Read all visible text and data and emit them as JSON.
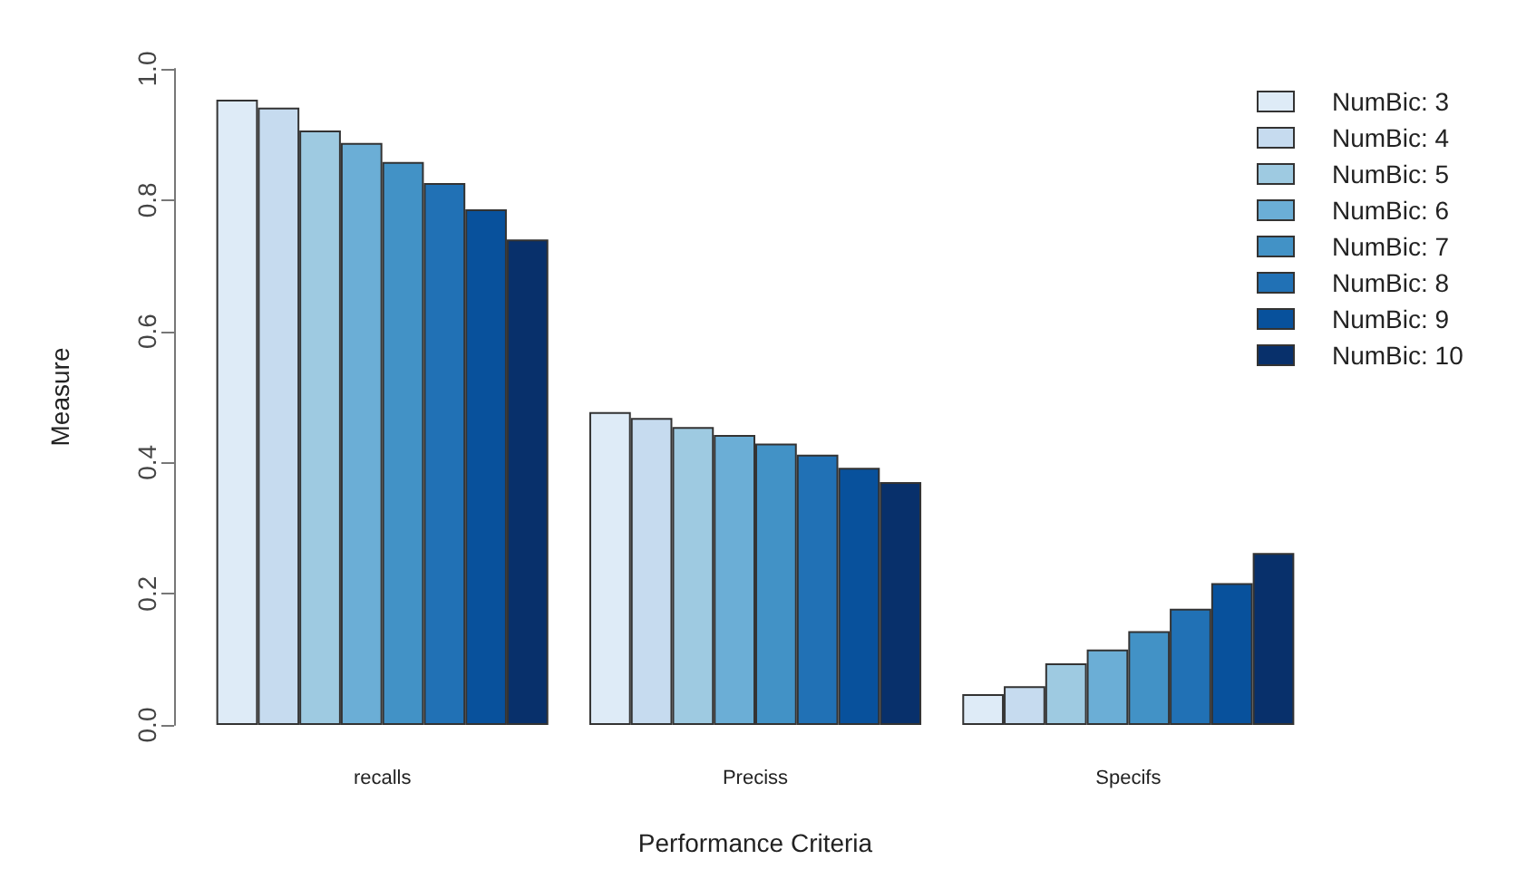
{
  "chart_data": {
    "type": "bar",
    "xlabel": "Performance Criteria",
    "ylabel": "Measure",
    "categories": [
      "recalls",
      "Preciss",
      "Specifs"
    ],
    "ylim": [
      0,
      1
    ],
    "yticks": [
      {
        "value": 0,
        "label": "0.0"
      },
      0.2,
      0.4,
      0.6,
      0.8,
      {
        "value": 1,
        "label": "1.0"
      }
    ],
    "legend": "top right",
    "grid": false,
    "series": [
      {
        "name": "NumBic: 3",
        "color": "#deebf7",
        "values": [
          0.953,
          0.477,
          0.047
        ]
      },
      {
        "name": "NumBic: 4",
        "color": "#c6dbef",
        "values": [
          0.941,
          0.468,
          0.059
        ]
      },
      {
        "name": "NumBic: 5",
        "color": "#9ecae1",
        "values": [
          0.906,
          0.454,
          0.094
        ]
      },
      {
        "name": "NumBic: 6",
        "color": "#6baed6",
        "values": [
          0.887,
          0.442,
          0.115
        ]
      },
      {
        "name": "NumBic: 7",
        "color": "#4292c6",
        "values": [
          0.858,
          0.429,
          0.143
        ]
      },
      {
        "name": "NumBic: 8",
        "color": "#2171b5",
        "values": [
          0.826,
          0.412,
          0.177
        ]
      },
      {
        "name": "NumBic: 9",
        "color": "#08519c",
        "values": [
          0.786,
          0.392,
          0.216
        ]
      },
      {
        "name": "NumBic: 10",
        "color": "#08306b",
        "values": [
          0.74,
          0.37,
          0.262
        ]
      }
    ]
  }
}
